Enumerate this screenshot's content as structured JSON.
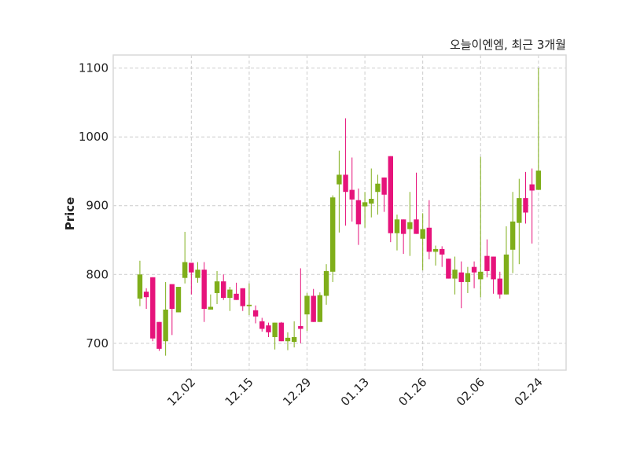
{
  "chart_data": {
    "type": "candlestick",
    "title": "오늘이엔엠, 최근 3개월",
    "xlabel": "",
    "ylabel": "Price",
    "ylim": [
      661,
      1119
    ],
    "yticks": [
      700,
      800,
      900,
      1000,
      1100
    ],
    "xticks": [
      {
        "index": 8,
        "label": "12.02"
      },
      {
        "index": 17,
        "label": "12.15"
      },
      {
        "index": 26,
        "label": "12.29"
      },
      {
        "index": 35,
        "label": "01.13"
      },
      {
        "index": 44,
        "label": "01.26"
      },
      {
        "index": 53,
        "label": "02.06"
      },
      {
        "index": 62,
        "label": "02.24"
      }
    ],
    "grid": true,
    "colors": {
      "up": "#7fae1a",
      "down": "#e6137b",
      "grid": "#cccccc",
      "frame": "#d9d9d9"
    },
    "ohlc": [
      [
        765,
        820,
        754,
        800
      ],
      [
        775,
        780,
        750,
        767
      ],
      [
        796,
        796,
        703,
        707
      ],
      [
        731,
        731,
        689,
        692
      ],
      [
        703,
        789,
        682,
        749
      ],
      [
        786,
        786,
        712,
        750
      ],
      [
        745,
        782,
        745,
        782
      ],
      [
        795,
        862,
        787,
        818
      ],
      [
        817,
        817,
        771,
        803
      ],
      [
        795,
        818,
        788,
        807
      ],
      [
        807,
        818,
        731,
        750
      ],
      [
        749,
        771,
        749,
        753
      ],
      [
        773,
        805,
        757,
        790
      ],
      [
        790,
        800,
        763,
        766
      ],
      [
        766,
        782,
        747,
        778
      ],
      [
        772,
        788,
        763,
        763
      ],
      [
        780,
        780,
        747,
        754
      ],
      [
        754,
        787,
        741,
        756
      ],
      [
        748,
        755,
        729,
        739
      ],
      [
        732,
        737,
        717,
        721
      ],
      [
        726,
        730,
        709,
        716
      ],
      [
        709,
        730,
        691,
        730
      ],
      [
        730,
        731,
        703,
        703
      ],
      [
        703,
        716,
        690,
        708
      ],
      [
        702,
        732,
        694,
        709
      ],
      [
        725,
        809,
        700,
        721
      ],
      [
        742,
        773,
        718,
        769
      ],
      [
        769,
        779,
        731,
        731
      ],
      [
        731,
        774,
        731,
        770
      ],
      [
        769,
        815,
        756,
        805
      ],
      [
        804,
        915,
        789,
        912
      ],
      [
        931,
        980,
        861,
        945
      ],
      [
        945,
        1027,
        871,
        920
      ],
      [
        923,
        970,
        877,
        909
      ],
      [
        908,
        925,
        843,
        873
      ],
      [
        899,
        920,
        868,
        905
      ],
      [
        903,
        954,
        883,
        910
      ],
      [
        920,
        945,
        887,
        932
      ],
      [
        941,
        941,
        891,
        916
      ],
      [
        972,
        972,
        847,
        860
      ],
      [
        860,
        887,
        835,
        880
      ],
      [
        880,
        880,
        830,
        859
      ],
      [
        866,
        920,
        827,
        876
      ],
      [
        880,
        948,
        859,
        859
      ],
      [
        852,
        889,
        806,
        866
      ],
      [
        868,
        908,
        822,
        833
      ],
      [
        833,
        842,
        813,
        837
      ],
      [
        837,
        841,
        811,
        829
      ],
      [
        823,
        823,
        794,
        794
      ],
      [
        794,
        826,
        771,
        807
      ],
      [
        803,
        819,
        751,
        789
      ],
      [
        789,
        811,
        773,
        802
      ],
      [
        811,
        819,
        780,
        803
      ],
      [
        793,
        971,
        767,
        804
      ],
      [
        827,
        851,
        796,
        805
      ],
      [
        826,
        826,
        772,
        793
      ],
      [
        794,
        804,
        765,
        771
      ],
      [
        771,
        870,
        771,
        829
      ],
      [
        836,
        920,
        802,
        877
      ],
      [
        875,
        939,
        815,
        911
      ],
      [
        911,
        949,
        874,
        890
      ],
      [
        931,
        954,
        845,
        922
      ],
      [
        923,
        1100,
        923,
        951
      ]
    ]
  }
}
